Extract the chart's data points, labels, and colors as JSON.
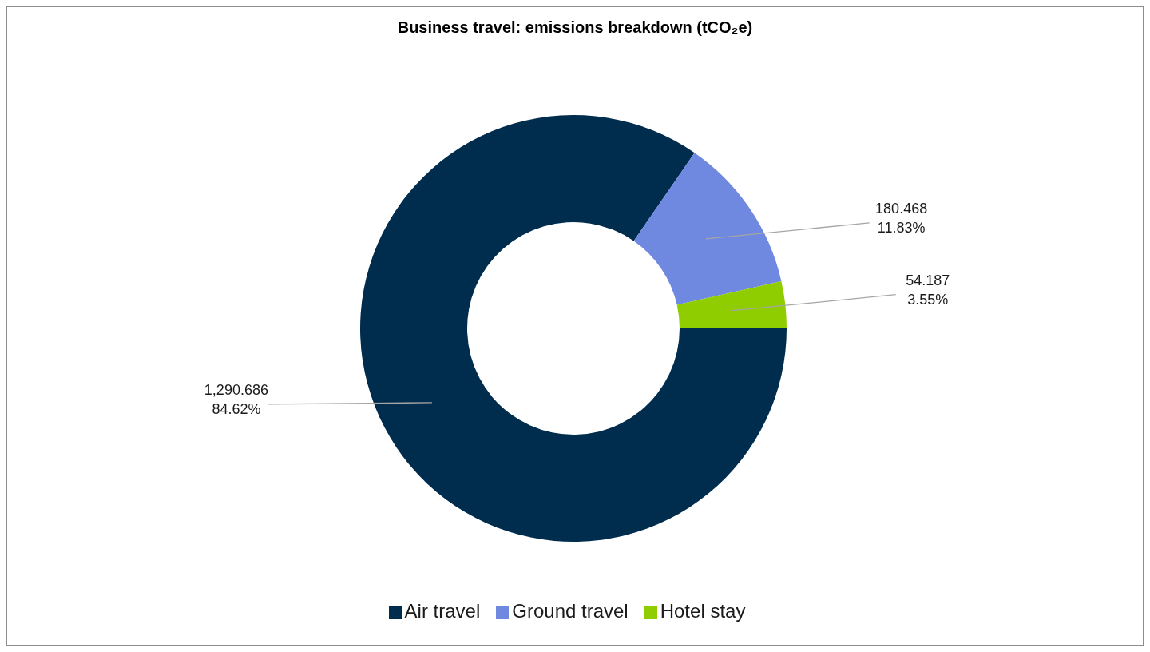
{
  "chart_data": {
    "type": "donut",
    "title": "Business travel: emissions breakdown (tCO₂e)",
    "categories": [
      "Air travel",
      "Ground travel",
      "Hotel stay"
    ],
    "values": [
      1290.686,
      180.468,
      54.187
    ],
    "colors": [
      "#002c4e",
      "#6f88e0",
      "#8fcc00"
    ],
    "value_labels": [
      "1,290.686\n84.62%",
      "180.468\n11.83%",
      "54.187\n3.55%"
    ],
    "legend": "bottom"
  }
}
